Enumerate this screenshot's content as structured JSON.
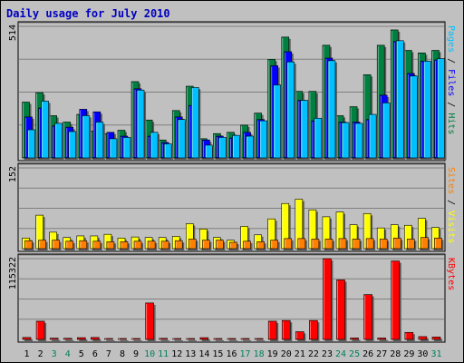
{
  "colors": {
    "background": "#c0c0c0",
    "title": "#0000c0",
    "hits": "#008040",
    "files": "#0000ff",
    "pages": "#00c0ff",
    "visits": "#ffff00",
    "sites": "#ff8000",
    "kbytes": "#ff0000",
    "weekend_day": "#00805c",
    "weekday": "#000000"
  },
  "chart_data": {
    "type": "bar",
    "title": "Daily usage for July 2010",
    "categories": [
      "1",
      "2",
      "3",
      "4",
      "5",
      "6",
      "7",
      "8",
      "9",
      "10",
      "11",
      "12",
      "13",
      "14",
      "15",
      "16",
      "17",
      "18",
      "19",
      "20",
      "21",
      "22",
      "23",
      "24",
      "25",
      "26",
      "27",
      "28",
      "29",
      "30",
      "31"
    ],
    "weekend_days": [
      "3",
      "4",
      "10",
      "11",
      "17",
      "18",
      "24",
      "25",
      "31"
    ],
    "panels": [
      {
        "id": "hits-files-pages",
        "max_label": "514",
        "ylim": [
          0,
          514
        ],
        "right_label": [
          {
            "text": "Pages",
            "color_key": "pages"
          },
          {
            "text": " / ",
            "color_key": "weekday"
          },
          {
            "text": "Files",
            "color_key": "files"
          },
          {
            "text": " / ",
            "color_key": "weekday"
          },
          {
            "text": "Hits",
            "color_key": "hits"
          }
        ],
        "series": [
          {
            "key": "hits",
            "values": [
              218,
              255,
              165,
              140,
              170,
              105,
              95,
              108,
              298,
              148,
              70,
              185,
              280,
              75,
              95,
              100,
              128,
              175,
              385,
              472,
              260,
              260,
              440,
              165,
              200,
              325,
              440,
              500,
              420,
              410,
              420
            ]
          },
          {
            "key": "files",
            "values": [
              160,
              195,
              125,
              120,
              190,
              180,
              100,
              85,
              270,
              85,
              60,
              160,
              205,
              70,
              85,
              78,
              100,
              150,
              360,
              415,
              225,
              145,
              390,
              140,
              140,
              150,
              245,
              455,
              330,
              378,
              383
            ]
          },
          {
            "key": "pages",
            "values": [
              110,
              222,
              135,
              103,
              165,
              140,
              75,
              80,
              265,
              100,
              55,
              150,
              275,
              50,
              80,
              88,
              85,
              145,
              285,
              375,
              225,
              155,
              380,
              138,
              135,
              170,
              215,
              458,
              320,
              378,
              388
            ]
          }
        ]
      },
      {
        "id": "visits-sites",
        "max_label": "152",
        "ylim": [
          0,
          152
        ],
        "right_label": [
          {
            "text": "Sites",
            "color_key": "sites"
          },
          {
            "text": " / ",
            "color_key": "weekday"
          },
          {
            "text": "Visits",
            "color_key": "visits"
          }
        ],
        "series": [
          {
            "key": "visits",
            "values": [
              20,
              63,
              31,
              21,
              24,
              24,
              27,
              20,
              22,
              21,
              21,
              23,
              47,
              37,
              21,
              16,
              42,
              26,
              56,
              85,
              93,
              73,
              60,
              69,
              45,
              66,
              39,
              45,
              44,
              57,
              40
            ]
          },
          {
            "key": "sites",
            "values": [
              15,
              16,
              16,
              14,
              15,
              14,
              13,
              13,
              14,
              14,
              14,
              15,
              18,
              16,
              16,
              12,
              14,
              13,
              16,
              19,
              19,
              18,
              18,
              19,
              18,
              19,
              18,
              20,
              18,
              21,
              20
            ]
          }
        ]
      },
      {
        "id": "kbytes",
        "max_label": "115322",
        "ylim": [
          0,
          115322
        ],
        "right_label": [
          {
            "text": "KBytes",
            "color_key": "kbytes"
          }
        ],
        "series": [
          {
            "key": "kbytes",
            "values": [
              2800,
              26000,
              1800,
              1600,
              2500,
              2800,
              900,
              800,
              800,
              52000,
              1500,
              1200,
              1200,
              2500,
              800,
              800,
              1200,
              800,
              26000,
              27000,
              11000,
              27000,
              115322,
              85000,
              2000,
              64000,
              2000,
              112000,
              10000,
              4000,
              3500
            ]
          }
        ]
      }
    ]
  }
}
